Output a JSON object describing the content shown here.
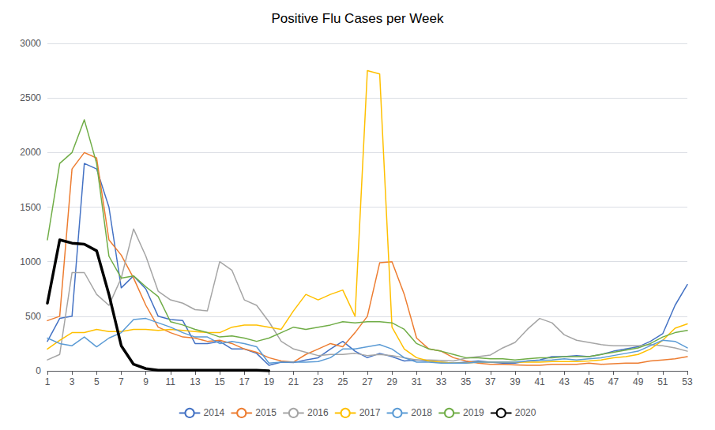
{
  "chart_data": {
    "type": "line",
    "title": "Positive Flu Cases per Week",
    "x": [
      1,
      2,
      3,
      4,
      5,
      6,
      7,
      8,
      9,
      10,
      11,
      12,
      13,
      14,
      15,
      16,
      17,
      18,
      19,
      20,
      21,
      22,
      23,
      24,
      25,
      26,
      27,
      28,
      29,
      30,
      31,
      32,
      33,
      34,
      35,
      36,
      37,
      38,
      39,
      40,
      41,
      42,
      43,
      44,
      45,
      46,
      47,
      48,
      49,
      50,
      51,
      52,
      53
    ],
    "xlim": [
      1,
      53
    ],
    "xticks": [
      1,
      3,
      5,
      7,
      9,
      11,
      13,
      15,
      17,
      19,
      21,
      23,
      25,
      27,
      29,
      31,
      33,
      35,
      37,
      39,
      41,
      43,
      45,
      47,
      49,
      51,
      53
    ],
    "ylim": [
      0,
      3000
    ],
    "yticks": [
      0,
      500,
      1000,
      1500,
      2000,
      2500,
      3000
    ],
    "grid": true,
    "legend": "bottom",
    "series": [
      {
        "name": "2014",
        "color": "#4472C4",
        "values": [
          270,
          480,
          500,
          1900,
          1850,
          1500,
          760,
          870,
          750,
          500,
          470,
          460,
          250,
          250,
          270,
          200,
          200,
          160,
          50,
          80,
          75,
          100,
          120,
          200,
          270,
          180,
          120,
          160,
          130,
          90,
          100,
          90,
          80,
          70,
          80,
          90,
          80,
          70,
          70,
          90,
          100,
          130,
          130,
          140,
          130,
          150,
          180,
          200,
          220,
          270,
          340,
          600,
          790
        ]
      },
      {
        "name": "2015",
        "color": "#ED7D31",
        "values": [
          460,
          500,
          1850,
          2000,
          1950,
          1200,
          1060,
          850,
          600,
          400,
          350,
          310,
          300,
          270,
          280,
          250,
          200,
          170,
          120,
          90,
          80,
          150,
          200,
          250,
          220,
          350,
          500,
          990,
          1000,
          700,
          300,
          200,
          180,
          120,
          90,
          70,
          60,
          60,
          55,
          50,
          50,
          60,
          60,
          60,
          70,
          60,
          65,
          70,
          70,
          90,
          100,
          110,
          130
        ]
      },
      {
        "name": "2016",
        "color": "#A5A5A5",
        "values": [
          100,
          150,
          900,
          900,
          700,
          600,
          850,
          1300,
          1050,
          730,
          650,
          620,
          560,
          550,
          1000,
          920,
          650,
          600,
          450,
          270,
          200,
          170,
          140,
          150,
          150,
          160,
          140,
          150,
          140,
          120,
          100,
          100,
          95,
          90,
          115,
          130,
          145,
          210,
          260,
          380,
          480,
          440,
          330,
          280,
          260,
          240,
          230,
          230,
          230,
          240,
          230,
          210,
          180
        ]
      },
      {
        "name": "2017",
        "color": "#FFC000",
        "values": [
          200,
          280,
          350,
          350,
          380,
          360,
          360,
          380,
          380,
          370,
          380,
          370,
          360,
          350,
          350,
          400,
          420,
          420,
          400,
          380,
          550,
          700,
          650,
          700,
          740,
          500,
          2750,
          2720,
          400,
          200,
          120,
          90,
          80,
          70,
          70,
          80,
          80,
          80,
          80,
          80,
          80,
          85,
          85,
          85,
          90,
          100,
          120,
          130,
          150,
          200,
          280,
          390,
          430
        ]
      },
      {
        "name": "2018",
        "color": "#5B9BD5",
        "values": [
          300,
          250,
          230,
          310,
          220,
          300,
          350,
          470,
          480,
          440,
          400,
          350,
          310,
          310,
          250,
          270,
          250,
          220,
          70,
          80,
          80,
          80,
          85,
          120,
          200,
          200,
          220,
          240,
          200,
          120,
          80,
          80,
          70,
          70,
          70,
          80,
          80,
          80,
          80,
          90,
          95,
          100,
          110,
          100,
          110,
          120,
          140,
          160,
          180,
          230,
          280,
          270,
          210
        ]
      },
      {
        "name": "2019",
        "color": "#70AD47",
        "values": [
          1200,
          1900,
          2000,
          2300,
          1900,
          1050,
          850,
          870,
          770,
          680,
          450,
          420,
          380,
          350,
          310,
          320,
          300,
          270,
          300,
          350,
          400,
          380,
          400,
          420,
          450,
          440,
          450,
          450,
          440,
          380,
          250,
          200,
          180,
          150,
          120,
          120,
          110,
          110,
          100,
          110,
          120,
          120,
          130,
          130,
          130,
          150,
          170,
          190,
          210,
          250,
          310,
          350,
          370
        ]
      },
      {
        "name": "2020",
        "color": "#000000",
        "line_style": "thick",
        "values": [
          620,
          1200,
          1170,
          1160,
          1100,
          700,
          230,
          60,
          20,
          5,
          5,
          5,
          5,
          5,
          5,
          5,
          5,
          5,
          0,
          null,
          null,
          null,
          null,
          null,
          null,
          null,
          null,
          null,
          null,
          null,
          null,
          null,
          null,
          null,
          null,
          null,
          null,
          null,
          null,
          null,
          null,
          null,
          null,
          null,
          null,
          null,
          null,
          null,
          null,
          null,
          null,
          null,
          null
        ]
      }
    ]
  }
}
